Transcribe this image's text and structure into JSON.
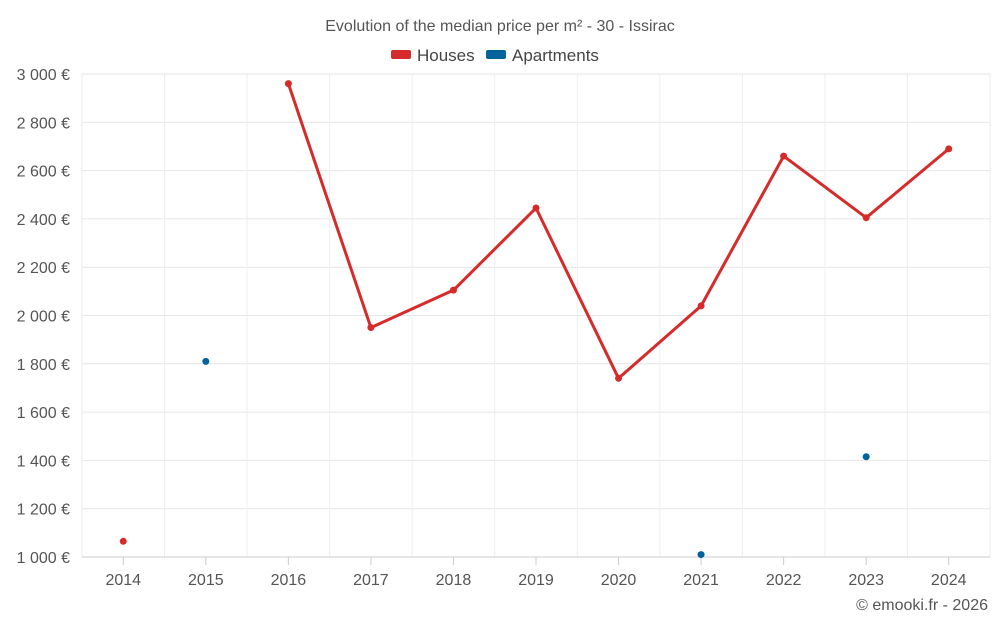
{
  "chart_data": {
    "type": "line",
    "title": "Evolution of the median price per m² - 30 - Issirac",
    "categories": [
      "2014",
      "2015",
      "2016",
      "2017",
      "2018",
      "2019",
      "2020",
      "2021",
      "2022",
      "2023",
      "2024"
    ],
    "ylim": [
      1000,
      3000
    ],
    "yticks": [
      1000,
      1200,
      1400,
      1600,
      1800,
      2000,
      2200,
      2400,
      2600,
      2800,
      3000
    ],
    "ytick_labels": [
      "1 000 €",
      "1 200 €",
      "1 400 €",
      "1 600 €",
      "1 800 €",
      "2 000 €",
      "2 200 €",
      "2 400 €",
      "2 600 €",
      "2 800 €",
      "3 000 €"
    ],
    "grid": true,
    "legend_position": "top-center",
    "series": [
      {
        "name": "Houses",
        "color": "#d52b2b",
        "values": [
          1065,
          null,
          2960,
          1950,
          2105,
          2445,
          1740,
          2040,
          2660,
          2405,
          2690
        ]
      },
      {
        "name": "Apartments",
        "color": "#00649c",
        "values": [
          null,
          1810,
          null,
          null,
          null,
          null,
          null,
          1010,
          null,
          1415,
          null
        ]
      }
    ],
    "credit": "© emooki.fr - 2026"
  }
}
